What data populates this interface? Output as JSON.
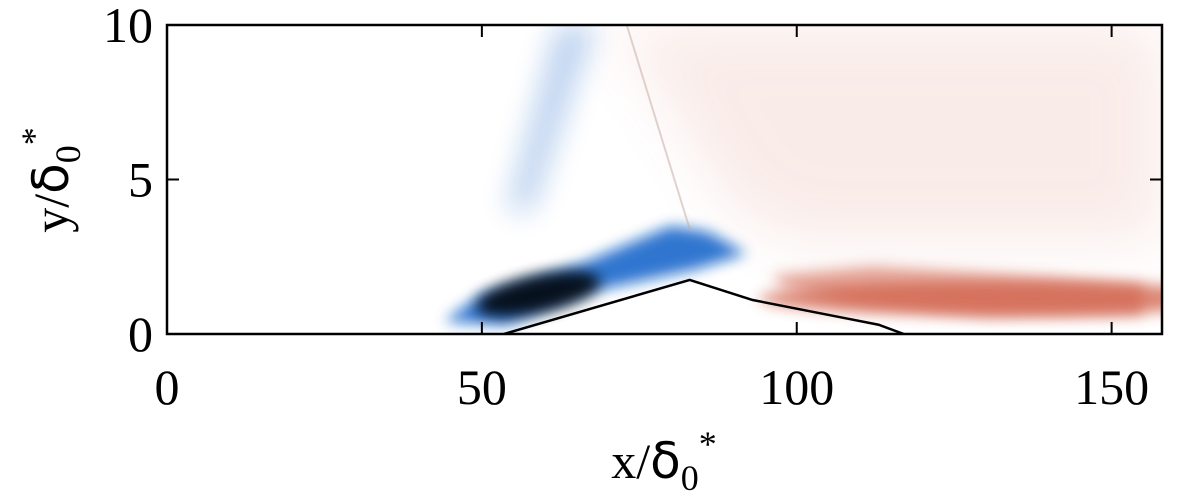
{
  "chart_data": {
    "type": "heatmap",
    "xlabel": {
      "base": "x/",
      "symbol": "δ",
      "subscript": "0",
      "superscript": "*"
    },
    "ylabel": {
      "base": "y/",
      "symbol": "δ",
      "subscript": "0",
      "superscript": "*"
    },
    "xlim": [
      0,
      158
    ],
    "ylim": [
      0,
      10
    ],
    "x_ticks": [
      {
        "value": 0,
        "label": "0"
      },
      {
        "value": 50,
        "label": "50"
      },
      {
        "value": 100,
        "label": "100"
      },
      {
        "value": 150,
        "label": "150"
      }
    ],
    "y_ticks": [
      {
        "value": 0,
        "label": "0"
      },
      {
        "value": 5,
        "label": "5"
      },
      {
        "value": 10,
        "label": "10"
      }
    ],
    "grid": false,
    "colormap": {
      "negative": "#0a5ec8",
      "peak_negative": "#000000",
      "zero": "#ffffff",
      "positive": "#d0604a"
    },
    "contour_line": {
      "color": "#000000",
      "points": [
        [
          53.5,
          0
        ],
        [
          83,
          1.75
        ],
        [
          93,
          1.1
        ],
        [
          108,
          0.5
        ],
        [
          113,
          0.3
        ],
        [
          117,
          0
        ]
      ]
    },
    "regions": [
      {
        "sign": "negative",
        "description_points": [
          [
            48,
            0.5
          ],
          [
            60,
            1.4
          ],
          [
            74,
            2.4
          ],
          [
            83,
            3.3
          ]
        ],
        "peak": [
          59,
          1.3
        ]
      },
      {
        "sign": "negative",
        "description_points": [
          [
            55,
            5
          ],
          [
            62,
            10
          ]
        ]
      },
      {
        "sign": "positive",
        "description_points": [
          [
            100,
            1.8
          ],
          [
            130,
            1.2
          ],
          [
            156,
            1.2
          ]
        ],
        "peak": [
          133,
          1.15
        ]
      },
      {
        "sign": "positive",
        "description_points": [
          [
            70,
            6
          ],
          [
            120,
            6
          ]
        ]
      }
    ]
  }
}
